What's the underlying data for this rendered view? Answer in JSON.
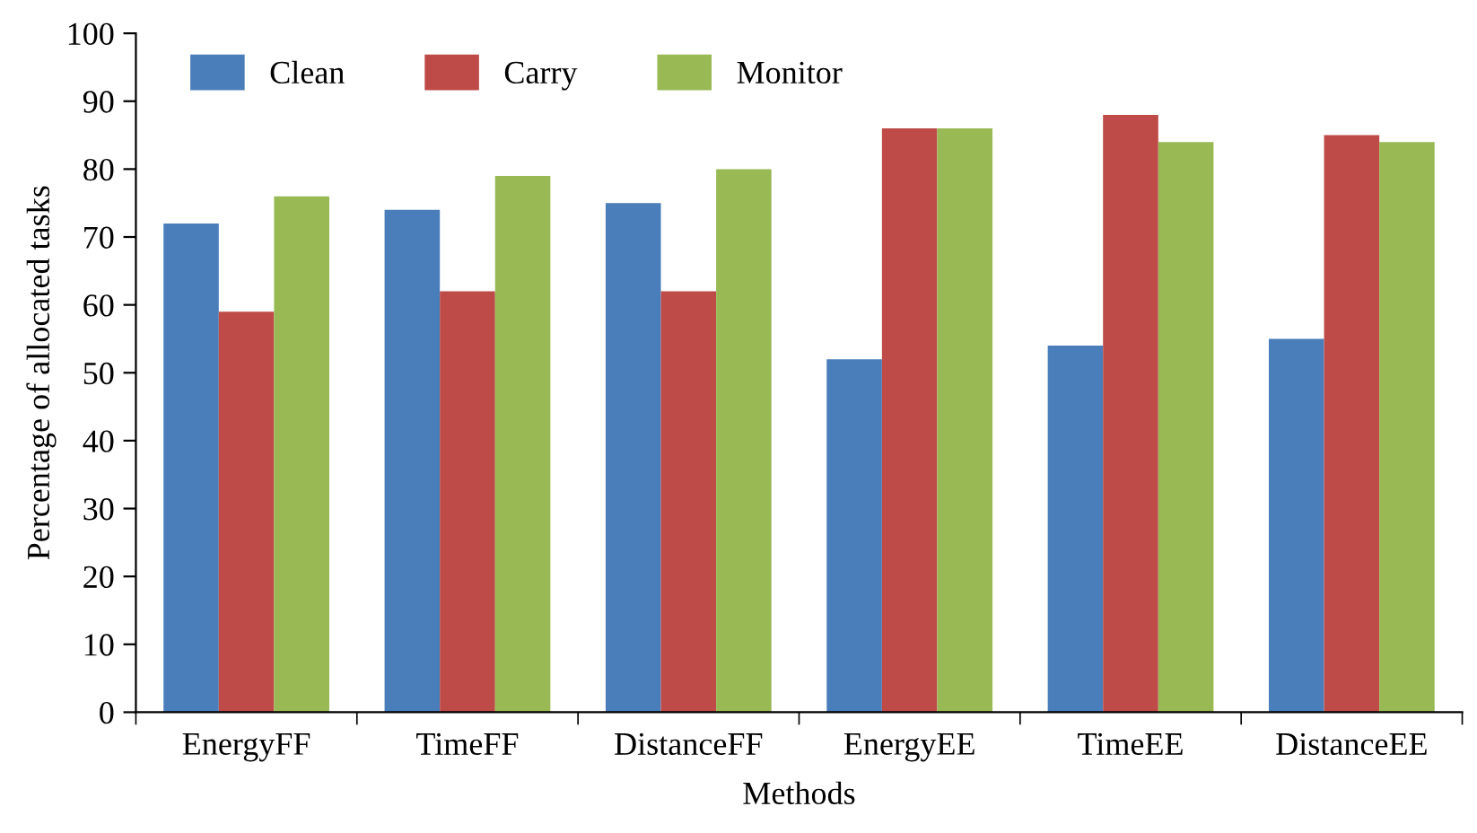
{
  "chart_data": {
    "type": "bar",
    "xlabel": "Methods",
    "ylabel": "Percentage of allocated tasks",
    "categories": [
      "EnergyFF",
      "TimeFF",
      "DistanceFF",
      "EnergyEE",
      "TimeEE",
      "DistanceEE"
    ],
    "series": [
      {
        "name": "Clean",
        "color": "#4a7ebb",
        "values": [
          72,
          74,
          75,
          52,
          54,
          55
        ]
      },
      {
        "name": "Carry",
        "color": "#be4b48",
        "values": [
          59,
          62,
          62,
          86,
          88,
          85
        ]
      },
      {
        "name": "Monitor",
        "color": "#98b954",
        "values": [
          76,
          79,
          80,
          86,
          84,
          84
        ]
      }
    ],
    "ylim": [
      0,
      100
    ],
    "yticks": [
      0,
      10,
      20,
      30,
      40,
      50,
      60,
      70,
      80,
      90,
      100
    ],
    "grid": false,
    "legend": "top left"
  }
}
